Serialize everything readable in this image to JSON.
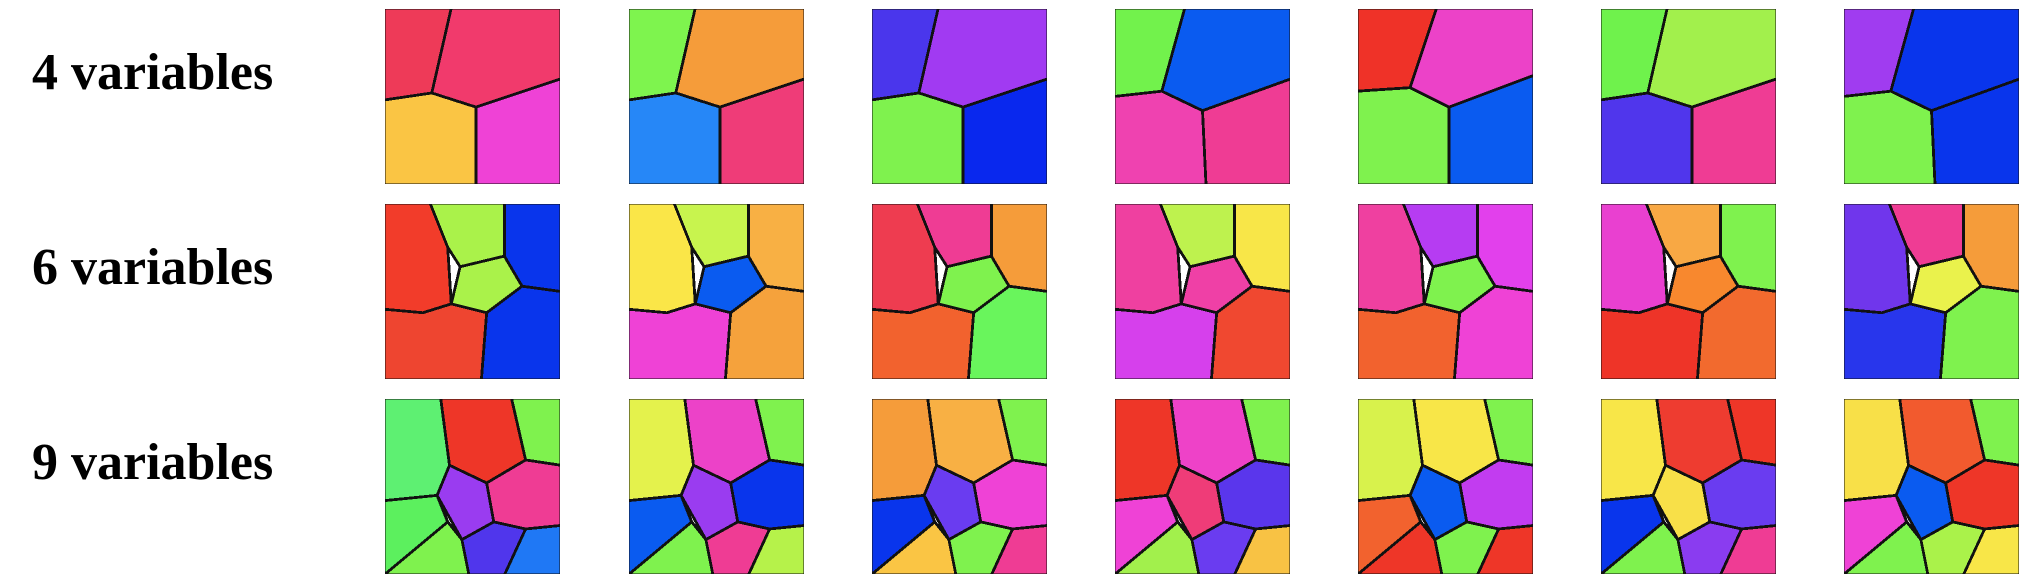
{
  "rows": [
    {
      "label": "4 variables",
      "tiles": [
        {
          "layout": "v4a",
          "colors": [
            "#ee3a58",
            "#f13a6c",
            "#fac544",
            "#ef42d6"
          ]
        },
        {
          "layout": "v4a",
          "colors": [
            "#7ef44e",
            "#f59c3a",
            "#2687f7",
            "#ef3c78"
          ]
        },
        {
          "layout": "v4a",
          "colors": [
            "#4a36ec",
            "#a13af2",
            "#7ff24e",
            "#0928ee"
          ]
        },
        {
          "layout": "v4b",
          "colors": [
            "#72f24c",
            "#0a5bf0",
            "#ef42b0",
            "#ef3c94"
          ]
        },
        {
          "layout": "v4c",
          "colors": [
            "#ef3228",
            "#ec42c8",
            "#7ff24e",
            "#0a5bf0"
          ]
        },
        {
          "layout": "v4a",
          "colors": [
            "#6ff24c",
            "#a2f04c",
            "#5036ec",
            "#ef3c94"
          ]
        },
        {
          "layout": "v4b",
          "colors": [
            "#a03cf0",
            "#0935ec",
            "#7ff24e",
            "#0935ec"
          ]
        }
      ]
    },
    {
      "label": "6 variables",
      "tiles": [
        {
          "layout": "v6",
          "colors": [
            "#f23c2a",
            "#aaf24a",
            "#0935ec",
            "#aaf24a",
            "#ee4530",
            "#0935ec"
          ]
        },
        {
          "layout": "v6",
          "colors": [
            "#fae648",
            "#c8f44e",
            "#f8b044",
            "#0a5bf0",
            "#ef42d6",
            "#f5a23c"
          ]
        },
        {
          "layout": "v6",
          "colors": [
            "#ee3c50",
            "#ef3c94",
            "#f59c3a",
            "#7ff24e",
            "#f2622e",
            "#69f55c"
          ]
        },
        {
          "layout": "v6",
          "colors": [
            "#ef40a0",
            "#bef24e",
            "#f8e648",
            "#ef40a6",
            "#d640ec",
            "#f04830"
          ]
        },
        {
          "layout": "v6",
          "colors": [
            "#ef40a0",
            "#b63cf2",
            "#e240ec",
            "#7ff24e",
            "#f2622e",
            "#ef42d6"
          ]
        },
        {
          "layout": "v6",
          "colors": [
            "#e940d0",
            "#f8a844",
            "#7ff24e",
            "#f8882e",
            "#ee3428",
            "#f26a2e"
          ]
        },
        {
          "layout": "v6",
          "colors": [
            "#7036ec",
            "#ef3c94",
            "#f59c3a",
            "#eaf24c",
            "#2836ec",
            "#7ff24e"
          ]
        }
      ]
    },
    {
      "label": "9 variables",
      "tiles": [
        {
          "layout": "v9",
          "colors": [
            "#5ef072",
            "#ee3628",
            "#7ff24e",
            "#9a3cf0",
            "#ef3c94",
            "#5cf05e",
            "#7ff24e",
            "#5036ec",
            "#1f78f5"
          ]
        },
        {
          "layout": "v9",
          "colors": [
            "#e4f24c",
            "#ec42c8",
            "#7ff24e",
            "#9a3cf0",
            "#0935ec",
            "#0a5bf0",
            "#7ff24e",
            "#ef3c94",
            "#b6f24a"
          ]
        },
        {
          "layout": "v9",
          "colors": [
            "#f59c3a",
            "#f8b044",
            "#7ff24e",
            "#6a3cf0",
            "#ef42d6",
            "#0935ec",
            "#fac544",
            "#7ff24e",
            "#ef3c94"
          ]
        },
        {
          "layout": "v9",
          "colors": [
            "#ee3628",
            "#ee42c8",
            "#7ff24e",
            "#ef3c78",
            "#5a36ec",
            "#ef42d6",
            "#a2f04c",
            "#6a3cf0",
            "#f8c244"
          ]
        },
        {
          "layout": "v9",
          "colors": [
            "#d8f24c",
            "#f8e648",
            "#7ff24e",
            "#0a5bf0",
            "#c23cf0",
            "#f2622e",
            "#ee3628",
            "#7ff24e",
            "#ee3628"
          ]
        },
        {
          "layout": "v9",
          "colors": [
            "#f8e648",
            "#ee3c30",
            "#ee3628",
            "#f8e048",
            "#6a3cf0",
            "#0935ec",
            "#7ff24e",
            "#8a3cf0",
            "#ef3c94"
          ]
        },
        {
          "layout": "v9",
          "colors": [
            "#f8e048",
            "#f25a2e",
            "#7ff24e",
            "#0a5bf0",
            "#ee3628",
            "#ef42d6",
            "#7ff24e",
            "#aaf24a",
            "#f8e648"
          ]
        }
      ]
    }
  ]
}
